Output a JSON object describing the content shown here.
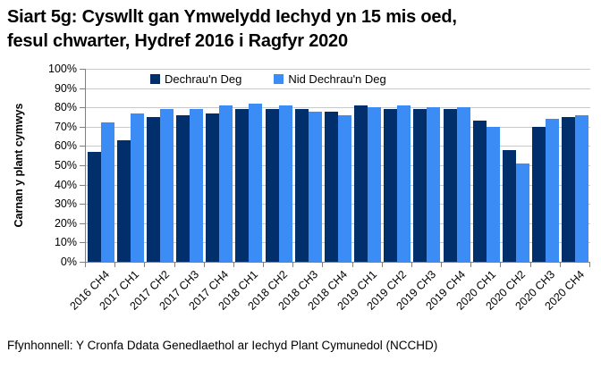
{
  "header": {
    "line1": "Siart 5g: Cyswllt gan Ymwelydd Iechyd yn 15 mis oed,",
    "line2": "fesul chwarter, Hydref 2016 i Ragfyr 2020"
  },
  "footer": {
    "source": "Ffynhonnell: Y Cronfa Ddata Genedlaethol ar Iechyd Plant Cymunedol (NCCHD)"
  },
  "colors": {
    "dark_blue": "#002F6C",
    "light_blue": "#3C8CF5",
    "gridline": "#C9C9C9",
    "axis": "#808080",
    "text": "#000000"
  },
  "chart_data": {
    "type": "bar",
    "title": "Siart 5g: Cyswllt gan Ymwelydd Iechyd yn 15 mis oed, fesul chwarter, Hydref 2016 i Ragfyr 2020",
    "xlabel": "",
    "ylabel": "Carnan y plant cymwys",
    "ylim": [
      0,
      100
    ],
    "ytick_step": 10,
    "yticks": [
      "0%",
      "10%",
      "20%",
      "30%",
      "40%",
      "50%",
      "60%",
      "70%",
      "80%",
      "90%",
      "100%"
    ],
    "grid": true,
    "legend_position": "top-center",
    "categories": [
      "2016 CH4",
      "2017 CH1",
      "2017 CH2",
      "2017 CH3",
      "2017 CH4",
      "2018 CH1",
      "2018 CH2",
      "2018 CH3",
      "2018 CH4",
      "2019 CH1",
      "2019 CH2",
      "2019 CH3",
      "2019 CH4",
      "2020 CH1",
      "2020 CH2",
      "2020 CH3",
      "2020 CH4"
    ],
    "series": [
      {
        "name": "Dechrau'n Deg",
        "color": "#002F6C",
        "values": [
          57,
          63,
          75,
          76,
          77,
          79,
          79,
          79,
          78,
          81,
          79,
          79,
          79,
          73,
          58,
          70,
          75
        ]
      },
      {
        "name": "Nid Dechrau'n Deg",
        "color": "#3C8CF5",
        "values": [
          72,
          77,
          79,
          79,
          81,
          82,
          81,
          78,
          76,
          80,
          81,
          80,
          80,
          70,
          51,
          74,
          76
        ]
      }
    ]
  }
}
